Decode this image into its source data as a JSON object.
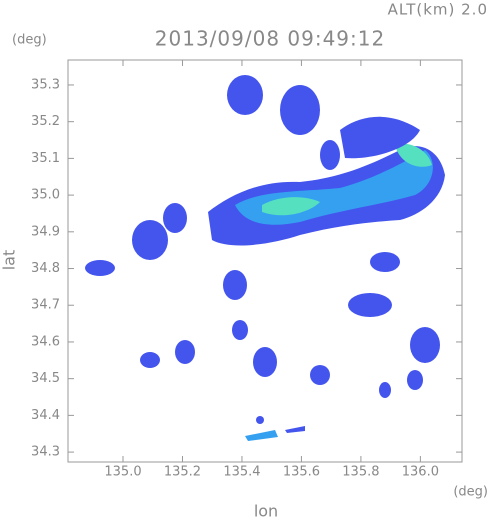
{
  "chart_data": {
    "type": "map",
    "header": "ALT(km) 2.0",
    "title": "2013/09/08 09:49:12",
    "ylabel": "lat",
    "yunit": "(deg)",
    "xlabel": "lon",
    "xunit": "(deg)",
    "xlim": [
      134.815,
      136.14
    ],
    "ylim": [
      34.273,
      35.368
    ],
    "xticks": [
      {
        "value": 135.0,
        "label": "135.0"
      },
      135.2,
      135.4,
      135.6,
      135.8,
      {
        "value": 136.0,
        "label": "136.0"
      }
    ],
    "yticks": [
      34.3,
      34.4,
      34.5,
      34.6,
      34.7,
      34.8,
      34.9,
      {
        "value": 35.0,
        "label": "35.0"
      },
      35.1,
      35.2,
      35.3
    ]
  }
}
